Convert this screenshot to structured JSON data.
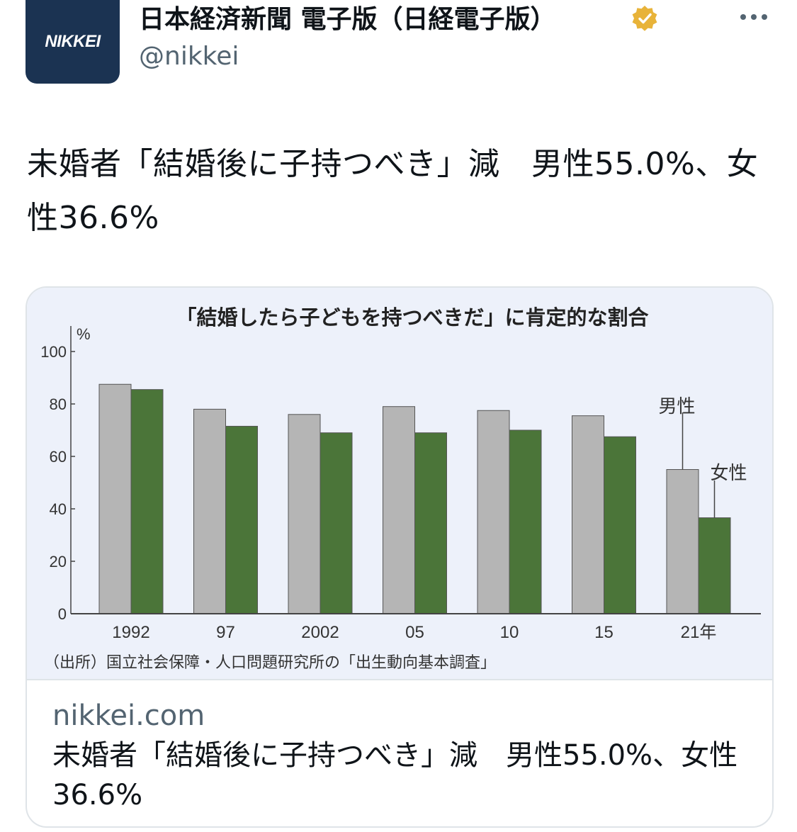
{
  "account": {
    "logo_text": "NIKKEI",
    "display_name": "日本経済新聞 電子版（日経電子版）",
    "handle": "@nikkei",
    "verified_icon": "verified-badge-icon",
    "more_icon": "more-options-icon"
  },
  "tweet": {
    "text": "未婚者「結婚後に子持つべき」減　男性55.0%、女性36.6%"
  },
  "card": {
    "domain": "nikkei.com",
    "title": "未婚者「結婚後に子持つべき」減　男性55.0%、女性36.6%"
  },
  "colors": {
    "male_bar": "#b5b5b5",
    "female_bar": "#4b7539",
    "chart_background": "#edf1fa",
    "avatar_background": "#1b3352"
  },
  "chart_data": {
    "type": "bar",
    "title": "「結婚したら子どもを持つべきだ」に肯定的な割合",
    "ylabel": "%",
    "ylim": [
      0,
      100
    ],
    "yticks": [
      "0",
      "20",
      "40",
      "60",
      "80",
      "100"
    ],
    "categories": [
      "1992",
      "97",
      "2002",
      "05",
      "10",
      "15",
      "21年"
    ],
    "series": [
      {
        "name": "男性",
        "values": [
          87.5,
          78,
          76,
          79,
          77.5,
          75.5,
          55.0
        ]
      },
      {
        "name": "女性",
        "values": [
          85.5,
          71.5,
          69,
          69,
          70,
          67.5,
          36.6
        ]
      }
    ],
    "source": "（出所）国立社会保障・人口問題研究所の「出生動向基本調査」",
    "grid": false
  }
}
